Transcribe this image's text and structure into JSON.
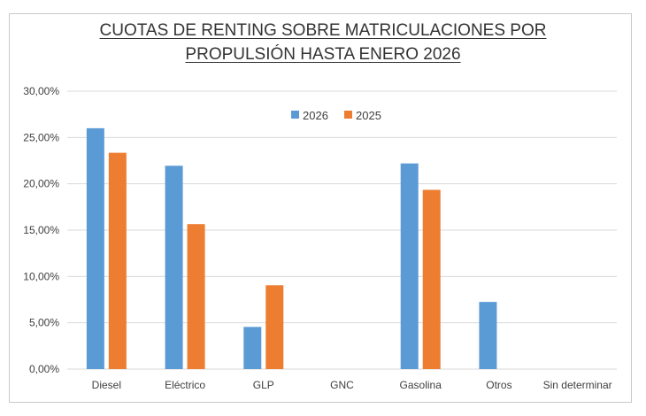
{
  "chart_data": {
    "type": "bar",
    "title_lines": [
      "CUOTAS DE RENTING SOBRE MATRICULACIONES POR",
      "PROPULSIÓN HASTA ENERO 2026"
    ],
    "categories": [
      "Diesel",
      "Eléctrico",
      "GLP",
      "GNC",
      "Gasolina",
      "Otros",
      "Sin determinar"
    ],
    "series": [
      {
        "name": "2026",
        "color": "#5b9bd5",
        "values": [
          26.0,
          21.95,
          4.55,
          0,
          22.2,
          7.25,
          0
        ]
      },
      {
        "name": "2025",
        "color": "#ed7d31",
        "values": [
          23.35,
          15.65,
          9.05,
          0,
          19.35,
          0,
          0
        ]
      }
    ],
    "yticks": [
      "0,00%",
      "5,00%",
      "10,00%",
      "15,00%",
      "20,00%",
      "25,00%",
      "30,00%"
    ],
    "ylim": [
      0,
      30
    ],
    "grid": true,
    "legend_position": "top-center"
  }
}
